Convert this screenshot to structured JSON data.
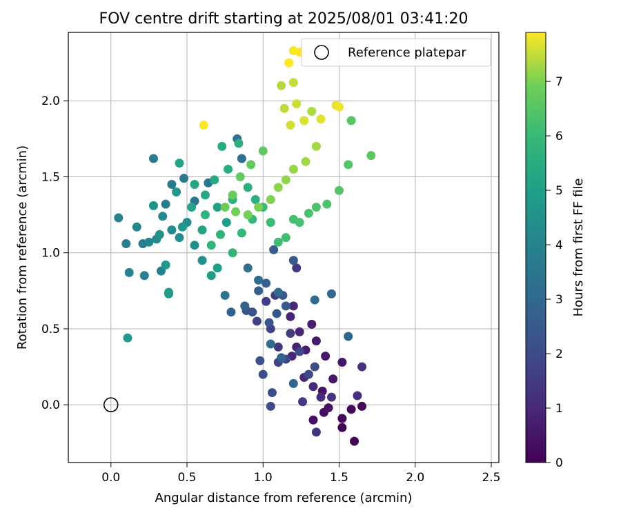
{
  "chart_data": {
    "type": "scatter",
    "title": "FOV centre drift starting at 2025/08/01 03:41:20",
    "xlabel": "Angular distance from reference (arcmin)",
    "ylabel": "Rotation from reference (arcmin)",
    "xlim": [
      -0.28,
      2.55
    ],
    "ylim": [
      -0.38,
      2.45
    ],
    "xticks": [
      0.0,
      0.5,
      1.0,
      1.5,
      2.0,
      2.5
    ],
    "xtick_labels": [
      "0.0",
      "0.5",
      "1.0",
      "1.5",
      "2.0",
      "2.5"
    ],
    "yticks": [
      0.0,
      0.5,
      1.0,
      1.5,
      2.0
    ],
    "ytick_labels": [
      "0.0",
      "0.5",
      "1.0",
      "1.5",
      "2.0"
    ],
    "grid": true,
    "legend": {
      "position": "top-right",
      "label": "Reference platepar"
    },
    "reference_point": {
      "x": 0.0,
      "y": 0.0
    },
    "colorbar": {
      "label": "Hours from first FF file",
      "colormap": "viridis",
      "range": [
        0,
        7.9
      ],
      "ticks": [
        0,
        1,
        2,
        3,
        4,
        5,
        6,
        7
      ],
      "tick_labels": [
        "0",
        "1",
        "2",
        "3",
        "4",
        "5",
        "6",
        "7"
      ]
    },
    "points": [
      [
        1.6,
        -0.24,
        0.05
      ],
      [
        1.52,
        -0.15,
        0.1
      ],
      [
        1.52,
        -0.09,
        0.15
      ],
      [
        1.65,
        -0.01,
        0.2
      ],
      [
        1.58,
        -0.03,
        0.25
      ],
      [
        1.4,
        -0.05,
        0.3
      ],
      [
        1.33,
        -0.1,
        0.35
      ],
      [
        1.43,
        -0.02,
        0.4
      ],
      [
        1.39,
        0.09,
        0.45
      ],
      [
        1.46,
        0.17,
        0.5
      ],
      [
        1.52,
        0.28,
        0.55
      ],
      [
        1.41,
        0.32,
        0.6
      ],
      [
        1.35,
        0.42,
        0.65
      ],
      [
        1.32,
        0.53,
        0.7
      ],
      [
        1.28,
        0.36,
        0.75
      ],
      [
        1.22,
        0.38,
        0.8
      ],
      [
        1.18,
        0.58,
        0.85
      ],
      [
        1.24,
        0.48,
        0.9
      ],
      [
        1.19,
        0.32,
        0.95
      ],
      [
        1.2,
        0.65,
        1.0
      ],
      [
        1.27,
        0.18,
        1.05
      ],
      [
        1.33,
        0.12,
        1.1
      ],
      [
        1.38,
        0.05,
        1.15
      ],
      [
        1.62,
        0.06,
        1.2
      ],
      [
        1.65,
        0.25,
        1.25
      ],
      [
        1.45,
        0.05,
        1.3
      ],
      [
        1.35,
        -0.18,
        1.35
      ],
      [
        1.26,
        0.02,
        1.4
      ],
      [
        1.1,
        0.38,
        1.45
      ],
      [
        1.18,
        0.47,
        1.5
      ],
      [
        1.22,
        0.9,
        1.55
      ],
      [
        1.08,
        0.72,
        1.6
      ],
      [
        1.02,
        0.68,
        1.65
      ],
      [
        0.96,
        0.55,
        1.7
      ],
      [
        1.05,
        0.5,
        1.75
      ],
      [
        1.1,
        0.28,
        1.8
      ],
      [
        1.15,
        0.3,
        1.85
      ],
      [
        1.24,
        0.35,
        1.9
      ],
      [
        1.3,
        0.2,
        1.95
      ],
      [
        1.34,
        0.25,
        2.0
      ],
      [
        1.05,
        -0.01,
        2.05
      ],
      [
        1.06,
        0.08,
        2.1
      ],
      [
        1.0,
        0.2,
        2.15
      ],
      [
        0.98,
        0.29,
        2.2
      ],
      [
        0.93,
        0.61,
        2.25
      ],
      [
        0.89,
        0.62,
        2.3
      ],
      [
        1.04,
        0.54,
        2.35
      ],
      [
        1.09,
        0.6,
        2.4
      ],
      [
        1.13,
        0.72,
        2.45
      ],
      [
        1.15,
        0.65,
        2.5
      ],
      [
        1.2,
        0.95,
        2.55
      ],
      [
        1.07,
        1.02,
        2.6
      ],
      [
        1.02,
        0.8,
        2.65
      ],
      [
        0.97,
        0.75,
        2.7
      ],
      [
        0.88,
        0.65,
        2.75
      ],
      [
        0.79,
        0.61,
        2.8
      ],
      [
        1.12,
        0.31,
        2.85
      ],
      [
        1.2,
        0.14,
        2.9
      ],
      [
        1.45,
        0.73,
        2.95
      ],
      [
        1.56,
        0.45,
        3.0
      ],
      [
        1.34,
        0.69,
        3.05
      ],
      [
        1.1,
        0.74,
        3.1
      ],
      [
        1.05,
        0.4,
        3.15
      ],
      [
        0.97,
        0.82,
        3.2
      ],
      [
        0.9,
        0.9,
        3.25
      ],
      [
        0.86,
        1.62,
        3.3
      ],
      [
        0.83,
        1.75,
        3.35
      ],
      [
        0.75,
        0.72,
        3.4
      ],
      [
        0.64,
        1.46,
        3.45
      ],
      [
        0.55,
        1.34,
        3.5
      ],
      [
        0.48,
        1.49,
        3.55
      ],
      [
        0.4,
        1.45,
        3.6
      ],
      [
        0.36,
        1.32,
        3.65
      ],
      [
        0.28,
        1.62,
        3.7
      ],
      [
        0.21,
        1.06,
        3.75
      ],
      [
        0.1,
        1.06,
        3.8
      ],
      [
        0.33,
        0.88,
        3.85
      ],
      [
        0.22,
        0.85,
        3.9
      ],
      [
        0.12,
        0.87,
        3.95
      ],
      [
        0.05,
        1.23,
        4.0
      ],
      [
        0.17,
        1.17,
        4.05
      ],
      [
        0.25,
        1.07,
        4.1
      ],
      [
        0.3,
        1.09,
        4.15
      ],
      [
        0.34,
        1.24,
        4.2
      ],
      [
        0.4,
        1.15,
        4.25
      ],
      [
        0.45,
        1.1,
        4.3
      ],
      [
        0.5,
        1.2,
        4.35
      ],
      [
        0.55,
        1.05,
        4.4
      ],
      [
        0.6,
        0.95,
        4.45
      ],
      [
        0.32,
        1.12,
        4.5
      ],
      [
        0.28,
        1.31,
        4.55
      ],
      [
        0.38,
        0.73,
        4.6
      ],
      [
        0.43,
        1.4,
        4.65
      ],
      [
        0.47,
        1.17,
        4.7
      ],
      [
        0.36,
        0.92,
        4.75
      ],
      [
        0.11,
        0.44,
        4.8
      ],
      [
        0.38,
        0.74,
        4.85
      ],
      [
        0.66,
        0.85,
        4.9
      ],
      [
        0.7,
        0.9,
        4.95
      ],
      [
        0.76,
        1.2,
        5.0
      ],
      [
        0.7,
        1.3,
        5.05
      ],
      [
        0.6,
        1.15,
        5.1
      ],
      [
        0.53,
        1.3,
        5.15
      ],
      [
        0.45,
        1.59,
        5.2
      ],
      [
        0.55,
        1.45,
        5.25
      ],
      [
        0.62,
        1.38,
        5.3
      ],
      [
        0.68,
        1.48,
        5.35
      ],
      [
        0.73,
        1.7,
        5.4
      ],
      [
        0.77,
        1.55,
        5.45
      ],
      [
        0.84,
        1.72,
        5.5
      ],
      [
        0.9,
        1.43,
        5.55
      ],
      [
        0.95,
        1.35,
        5.6
      ],
      [
        0.8,
        1.35,
        5.65
      ],
      [
        0.62,
        1.25,
        5.7
      ],
      [
        0.66,
        1.05,
        5.75
      ],
      [
        0.72,
        1.12,
        5.8
      ],
      [
        0.8,
        1.0,
        5.85
      ],
      [
        0.86,
        1.13,
        5.9
      ],
      [
        0.93,
        1.22,
        5.95
      ],
      [
        1.0,
        1.3,
        6.0
      ],
      [
        1.05,
        1.2,
        6.05
      ],
      [
        1.1,
        1.07,
        6.1
      ],
      [
        1.15,
        1.1,
        6.15
      ],
      [
        1.2,
        1.22,
        6.2
      ],
      [
        1.24,
        1.2,
        6.25
      ],
      [
        1.3,
        1.26,
        6.3
      ],
      [
        1.35,
        1.3,
        6.35
      ],
      [
        1.42,
        1.32,
        6.4
      ],
      [
        1.5,
        1.41,
        6.45
      ],
      [
        1.56,
        1.58,
        6.5
      ],
      [
        1.58,
        1.87,
        6.55
      ],
      [
        1.71,
        1.64,
        6.6
      ],
      [
        1.0,
        1.67,
        6.65
      ],
      [
        0.92,
        1.58,
        6.7
      ],
      [
        0.85,
        1.5,
        6.75
      ],
      [
        0.8,
        1.38,
        6.8
      ],
      [
        0.75,
        1.3,
        6.85
      ],
      [
        0.82,
        1.27,
        6.9
      ],
      [
        0.9,
        1.25,
        6.95
      ],
      [
        0.97,
        1.3,
        7.0
      ],
      [
        1.05,
        1.35,
        7.05
      ],
      [
        1.1,
        1.43,
        7.1
      ],
      [
        1.15,
        1.48,
        7.15
      ],
      [
        1.2,
        1.55,
        7.2
      ],
      [
        1.28,
        1.6,
        7.25
      ],
      [
        1.35,
        1.7,
        7.3
      ],
      [
        1.32,
        1.93,
        7.35
      ],
      [
        1.12,
        2.1,
        7.4
      ],
      [
        1.14,
        1.95,
        7.45
      ],
      [
        1.2,
        2.12,
        7.5
      ],
      [
        1.22,
        1.98,
        7.55
      ],
      [
        1.18,
        1.84,
        7.6
      ],
      [
        1.27,
        1.87,
        7.65
      ],
      [
        1.38,
        1.88,
        7.7
      ],
      [
        1.48,
        1.97,
        7.75
      ],
      [
        1.5,
        1.96,
        7.8
      ],
      [
        1.2,
        2.33,
        7.85
      ],
      [
        1.17,
        2.25,
        7.9
      ],
      [
        1.24,
        2.32,
        7.9
      ],
      [
        0.61,
        1.84,
        7.9
      ]
    ]
  }
}
